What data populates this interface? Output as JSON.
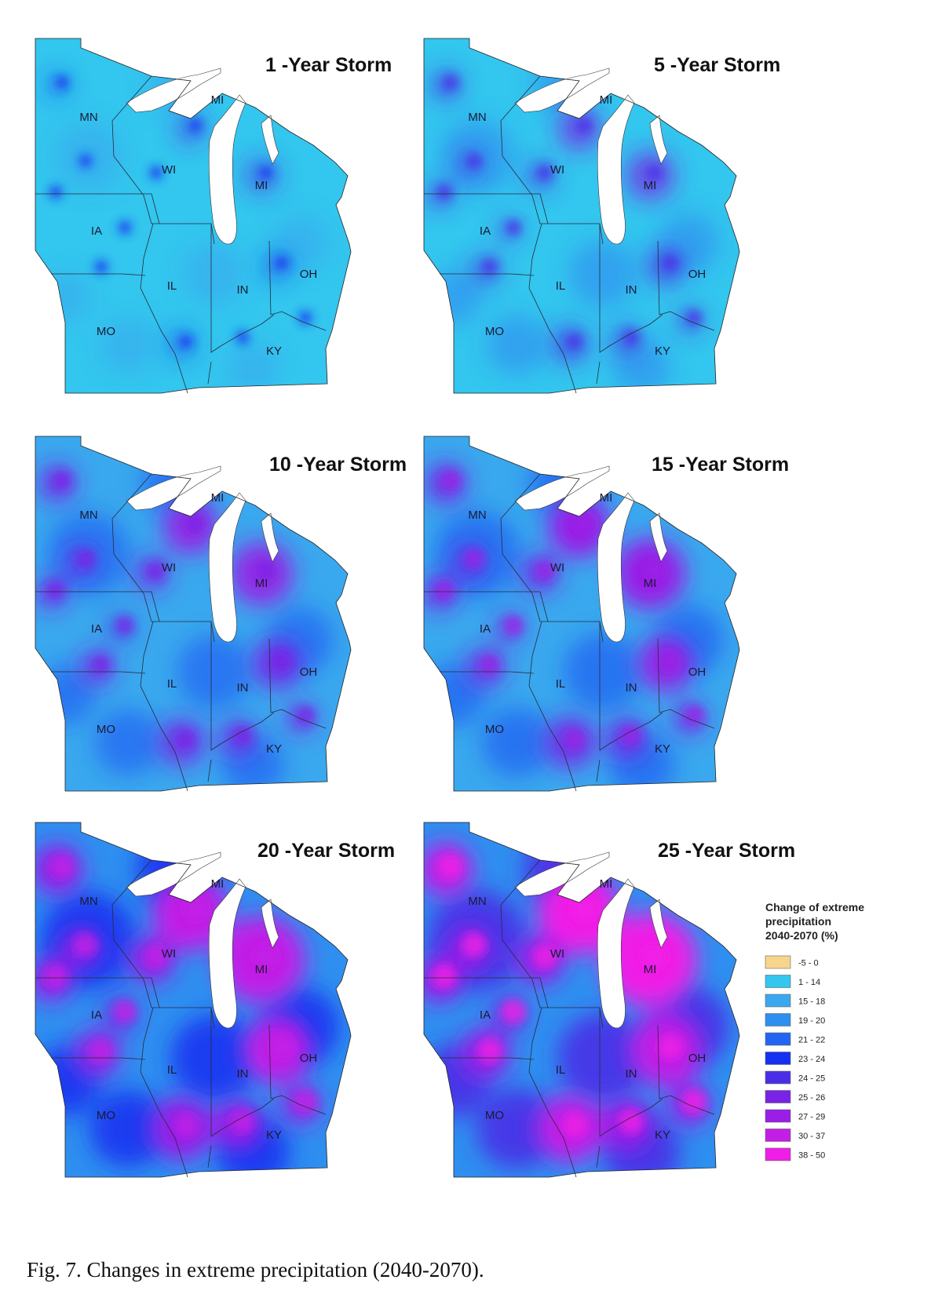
{
  "caption": "Fig. 7. Changes in extreme precipitation (2040-2070).",
  "panels": [
    {
      "title": "1 -Year Storm",
      "hotspot_intensity": 0.1,
      "base_color": "#33c6ee"
    },
    {
      "title": "5 -Year Storm",
      "hotspot_intensity": 0.3,
      "base_color": "#33c6ee"
    },
    {
      "title": "10 -Year Storm",
      "hotspot_intensity": 0.5,
      "base_color": "#3aa8ee"
    },
    {
      "title": "15 -Year Storm",
      "hotspot_intensity": 0.6,
      "base_color": "#3aa8ee"
    },
    {
      "title": "20 -Year Storm",
      "hotspot_intensity": 0.85,
      "base_color": "#2f8ff0"
    },
    {
      "title": "25 -Year Storm",
      "hotspot_intensity": 0.95,
      "base_color": "#2f8ff0"
    }
  ],
  "state_labels": [
    "MN",
    "WI",
    "MI",
    "MI",
    "IA",
    "IL",
    "IN",
    "OH",
    "MO",
    "KY"
  ],
  "legend": {
    "title_lines": [
      "Change of extreme",
      "precipitation",
      "2040-2070 (%)"
    ],
    "items": [
      {
        "label": "-5 - 0",
        "color": "#f7d58c"
      },
      {
        "label": "1 - 14",
        "color": "#33c6ee"
      },
      {
        "label": "15 - 18",
        "color": "#3aa8ee"
      },
      {
        "label": "19 - 20",
        "color": "#2f8ff0"
      },
      {
        "label": "21 - 22",
        "color": "#2464f2"
      },
      {
        "label": "23 - 24",
        "color": "#1530f0"
      },
      {
        "label": "24 - 25",
        "color": "#4a2ee6"
      },
      {
        "label": "25 - 26",
        "color": "#7a22e6"
      },
      {
        "label": "27 - 29",
        "color": "#9a1ee6"
      },
      {
        "label": "30 - 37",
        "color": "#c21ee6"
      },
      {
        "label": "38 - 50",
        "color": "#f01ee6"
      }
    ]
  }
}
